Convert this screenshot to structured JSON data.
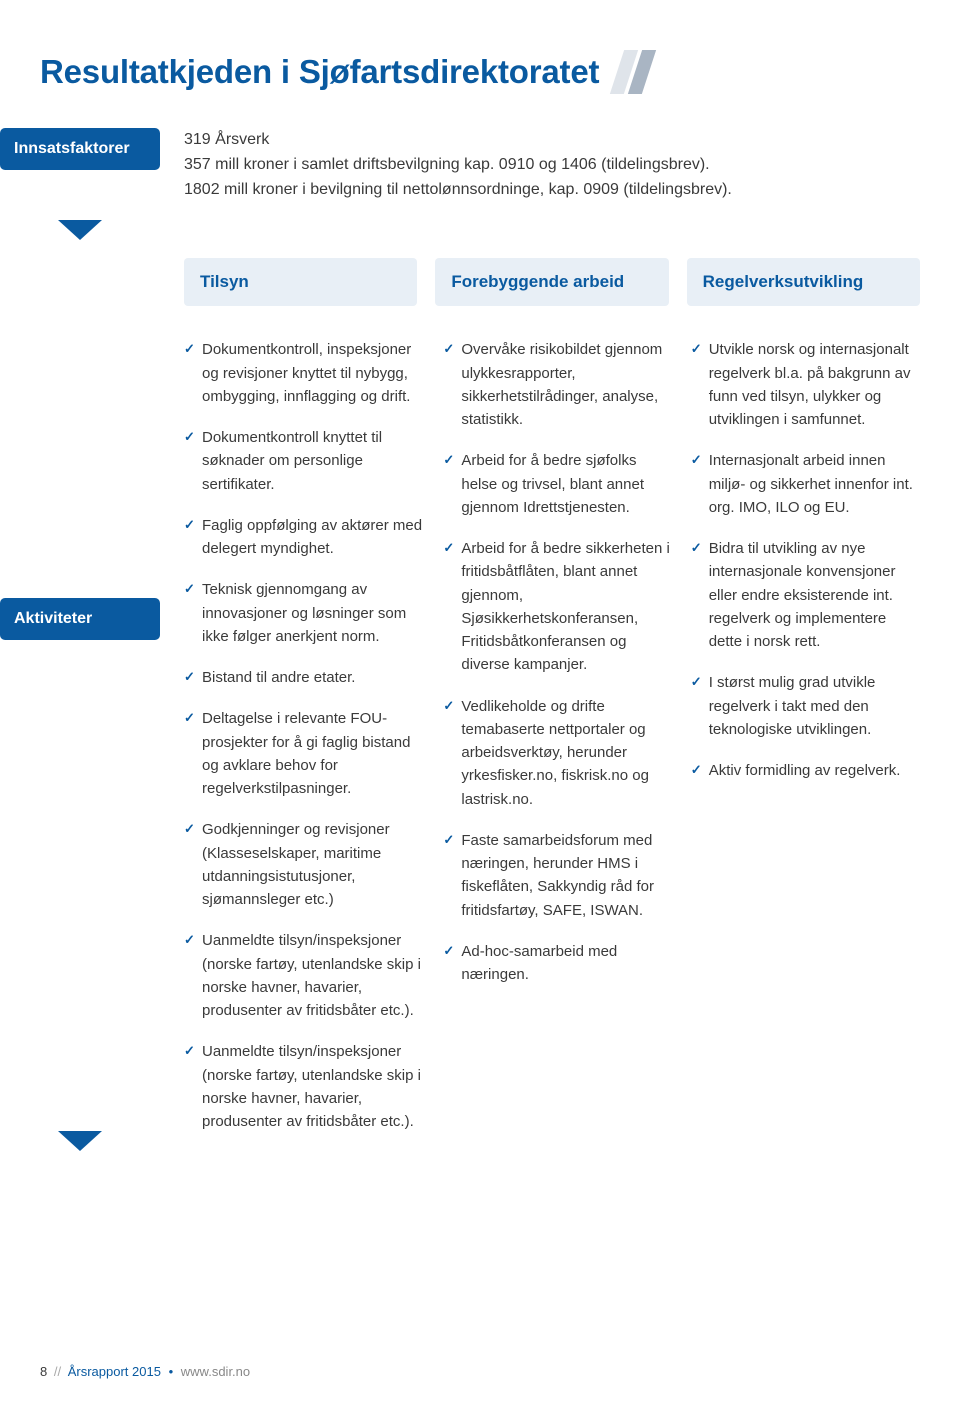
{
  "colors": {
    "brand": "#0a5aa0",
    "stripe1": "#dfe4ea",
    "stripe2": "#a9b5c3",
    "header_bg": "#e8eff6",
    "text": "#3a3a3a"
  },
  "title": "Resultatkjeden i Sjøfartsdirektoratet",
  "sections": {
    "innsats": {
      "label": "Innsatsfaktorer",
      "line1": "319 Årsverk",
      "line2": "357 mill kroner i samlet driftsbevilgning kap. 0910 og 1406 (tildelingsbrev).",
      "line3": "1802 mill kroner i bevilgning til nettolønnsordninge, kap. 0909 (tildelingsbrev)."
    },
    "headers": {
      "col1": "Tilsyn",
      "col2": "Forebyggende arbeid",
      "col3": "Regelverksutvikling"
    },
    "aktiviteter": {
      "label": "Aktiviteter",
      "col1": [
        "Dokumentkontroll, inspeksjoner og revisjoner knyttet til nybygg, ombygging, innflagging og drift.",
        "Dokumentkontroll knyttet til søknader om personlige sertifikater.",
        "Faglig oppfølging av aktører med delegert myndighet.",
        "Teknisk gjennomgang av innovasjoner og løsninger som ikke følger anerkjent norm.",
        "Bistand til andre etater.",
        "Deltagelse i relevante FOU-prosjekter for å gi faglig bistand og avklare behov for regelverkstilpasninger.",
        "Godkjenninger og revisjoner (Klasseselskaper, maritime utdanningsistutusjoner, sjømannsleger etc.)",
        "Uanmeldte tilsyn/inspeksjoner (norske fartøy, utenlandske skip i norske havner, havarier, produsenter av fritidsbåter etc.).",
        "Uanmeldte tilsyn/inspeksjoner (norske fartøy, utenlandske skip i norske havner, havarier, produsenter av fritidsbåter etc.)."
      ],
      "col2": [
        "Overvåke risikobildet gjennom ulykkesrapporter, sikkerhetstilrådinger, analyse, statistikk.",
        "Arbeid for å bedre sjøfolks helse og trivsel, blant annet gjennom Idrettstjenesten.",
        "Arbeid for å bedre sikkerheten i fritidsbåtflåten, blant annet gjennom, Sjøsikkerhetskonferansen, Fritidsbåtkonferansen og diverse kampanjer.",
        "Vedlikeholde og drifte temabaserte nettportaler og arbeidsverktøy, herunder yrkesfisker.no, fiskrisk.no og lastrisk.no.",
        "Faste samarbeidsforum med næringen, herunder HMS i fiskeflåten, Sakkyndig råd for fritidsfartøy, SAFE, ISWAN.",
        "Ad-hoc-samarbeid med næringen."
      ],
      "col3": [
        "Utvikle norsk og internasjonalt regelverk bl.a. på bakgrunn av funn ved tilsyn, ulykker og utviklingen i samfunnet.",
        "Internasjonalt arbeid innen miljø- og sikkerhet innenfor int. org. IMO, ILO og EU.",
        "Bidra til utvikling av nye internasjonale konvensjoner eller endre eksisterende int. regelverk og implementere dette i norsk rett.",
        "I størst mulig grad utvikle regelverk i takt med den teknologiske utviklingen.",
        "Aktiv formidling av regelverk."
      ]
    }
  },
  "footer": {
    "page": "8",
    "sep": "//",
    "report": "Årsrapport 2015",
    "bullet": "•",
    "url": "www.sdir.no"
  }
}
